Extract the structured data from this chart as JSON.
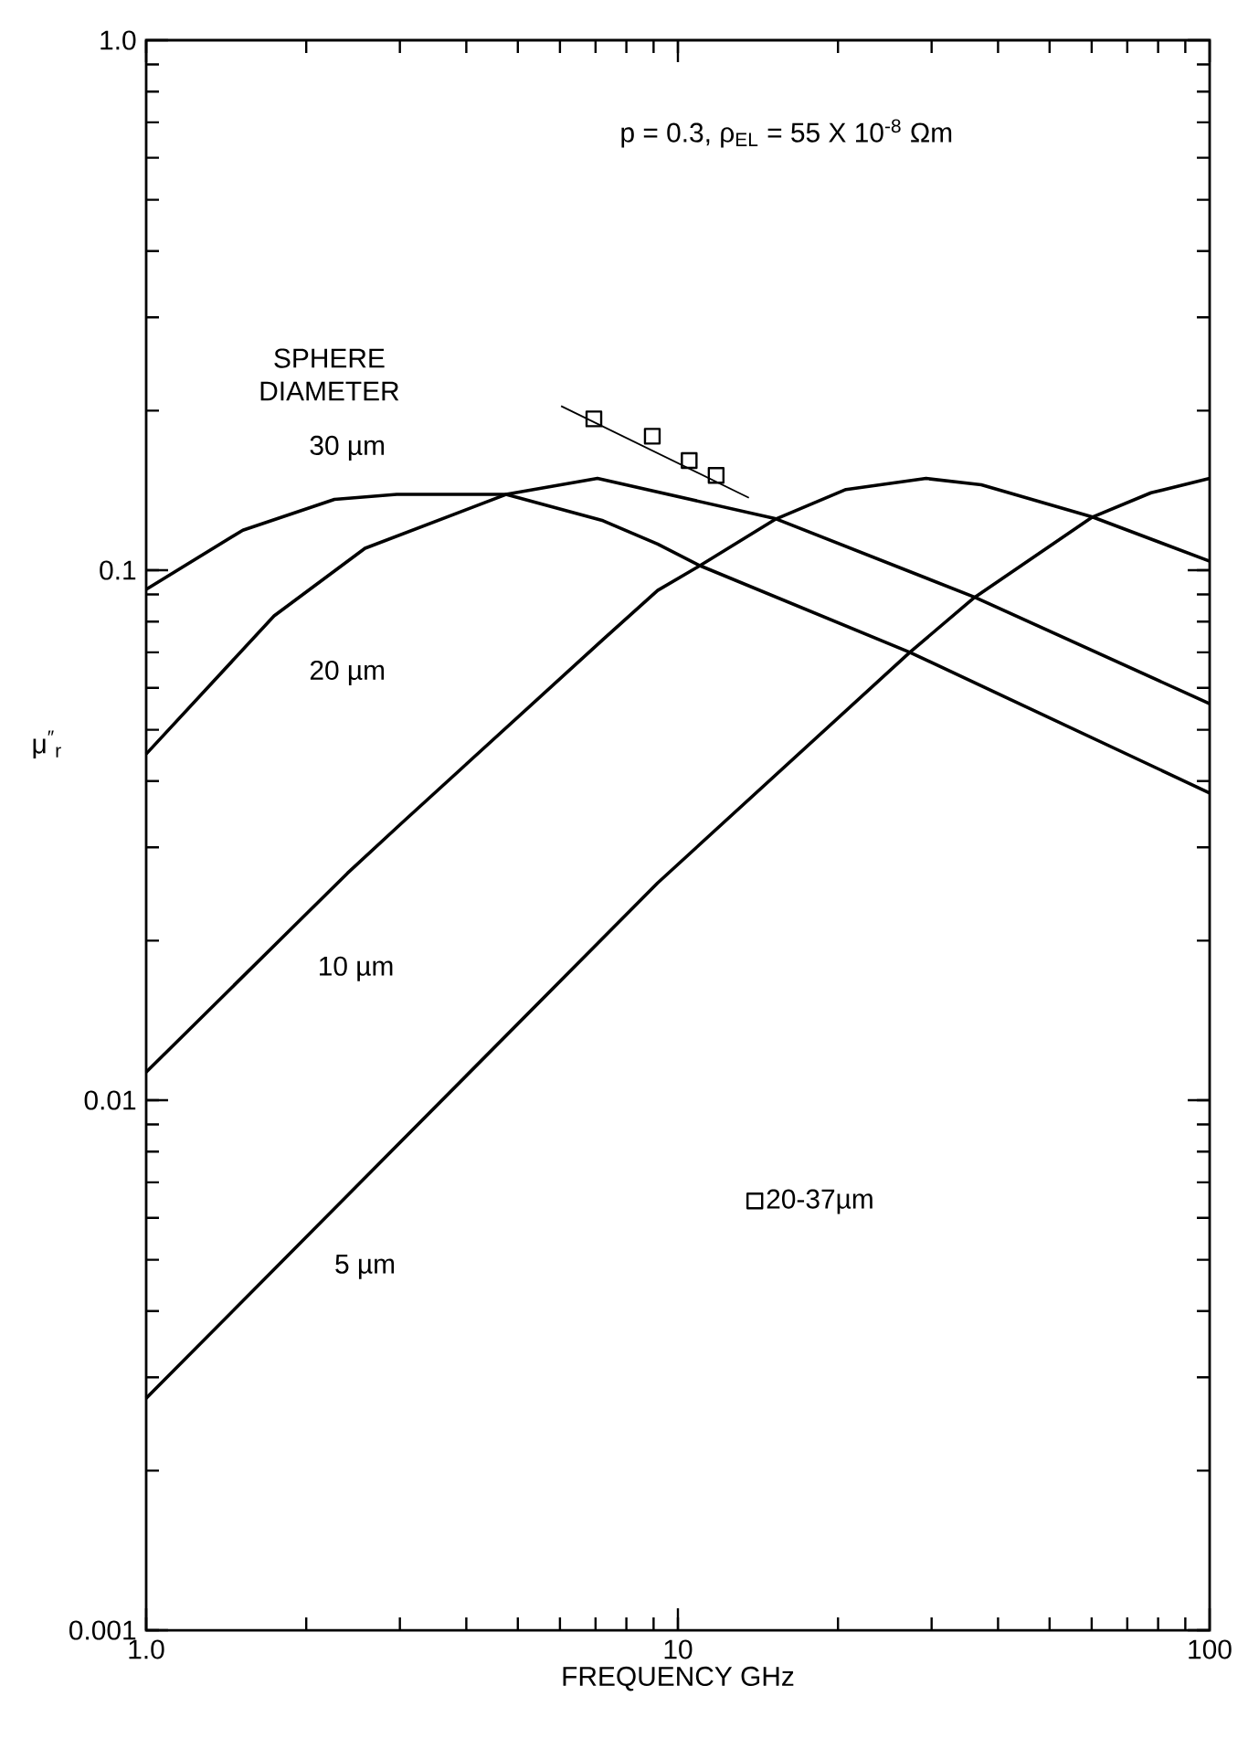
{
  "chart_data": {
    "type": "line",
    "log": "xy",
    "xlabel": "FREQUENCY GHz",
    "ylabel": "μ$^{″}$$_{r}$",
    "xlim": [
      1,
      100
    ],
    "ylim": [
      0.001,
      1
    ],
    "xticks": [
      {
        "value": 1,
        "label": "1.0"
      },
      10,
      100
    ],
    "yticks": [
      0.001,
      0.01,
      0.1,
      {
        "value": 1,
        "label": "1.0"
      }
    ],
    "annotations": [
      "SPHERE DIAMETER",
      "p = 0.3,  ρ$_{EL}$ = 55  X  10$^{-8}$ Ωm"
    ],
    "legend": "bottom right",
    "series": [
      {
        "name": "30 µm",
        "color": "#000000",
        "marker": "none",
        "line_style": "solid",
        "x": [
          1,
          1.52,
          2.26,
          2.96,
          4.75,
          7.23,
          9.16,
          11.0,
          27.3,
          100
        ],
        "values": [
          0.092,
          0.119,
          0.136,
          0.139,
          0.139,
          0.124,
          0.112,
          0.102,
          0.07,
          0.038
        ]
      },
      {
        "name": "20 µm",
        "color": "#000000",
        "marker": "none",
        "line_style": "solid",
        "x": [
          1,
          1.74,
          2.58,
          4.75,
          7.06,
          15.3,
          36.1,
          100
        ],
        "values": [
          0.045,
          0.082,
          0.11,
          0.139,
          0.149,
          0.125,
          0.089,
          0.056
        ]
      },
      {
        "name": "10 µm",
        "color": "#000000",
        "marker": "none",
        "line_style": "solid",
        "x": [
          1,
          2.39,
          3.03,
          7.23,
          9.16,
          11.0,
          15.3,
          20.7,
          29.3,
          37.2,
          60.2,
          100
        ],
        "values": [
          0.0113,
          0.0268,
          0.0334,
          0.074,
          0.0916,
          0.102,
          0.125,
          0.142,
          0.149,
          0.145,
          0.126,
          0.104
        ]
      },
      {
        "name": "5 µm",
        "color": "#000000",
        "marker": "none",
        "line_style": "solid",
        "x": [
          1,
          9.16,
          27.3,
          36.1,
          60.2,
          77.6,
          100
        ],
        "values": [
          0.00274,
          0.0257,
          0.07,
          0.0888,
          0.126,
          0.14,
          0.149
        ]
      },
      {
        "name": "20-37µm",
        "type": "scatter",
        "color": "#000000",
        "marker": "square",
        "x": [
          6.95,
          8.95,
          10.5,
          11.8
        ],
        "values": [
          0.193,
          0.179,
          0.161,
          0.151
        ]
      },
      {
        "color": "#000000",
        "marker": "none",
        "line_style": "solid",
        "x": [
          6.03,
          13.6
        ],
        "values": [
          0.204,
          0.137
        ]
      }
    ]
  }
}
